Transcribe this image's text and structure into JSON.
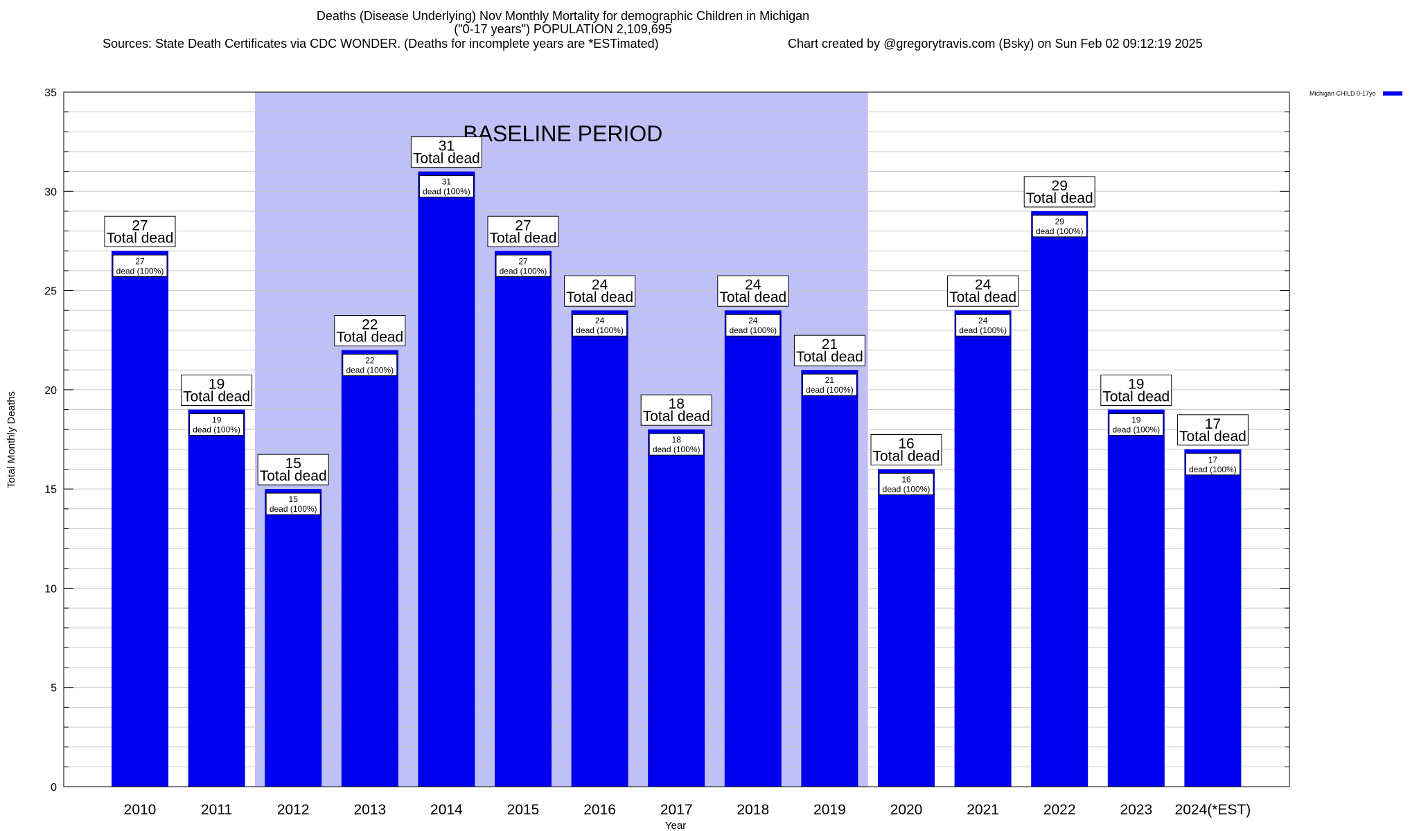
{
  "title": {
    "line1": "Deaths (Disease Underlying) Nov Monthly Mortality for demographic Children in Michigan",
    "line2": "(\"0-17 years\") POPULATION 2,109,695",
    "sources": "Sources: State Death Certificates via CDC WONDER. (Deaths for incomplete years are *ESTimated)",
    "credit": "Chart created by @gregorytravis.com (Bsky) on Sun Feb 02 09:12:19 2025"
  },
  "legend": {
    "label": "Michigan CHILD 0-17yo",
    "color": "#0000ee"
  },
  "baseline_label": "BASELINE PERIOD",
  "colors": {
    "bar": "#0000ee",
    "baseline_shade": "#c0c0f8",
    "grid": "#c8c8c8"
  },
  "chart_data": {
    "type": "bar",
    "title": "Deaths (Disease Underlying) Nov Monthly Mortality for demographic Children in Michigan",
    "xlabel": "Year",
    "ylabel": "Total Monthly Deaths",
    "ylim": [
      0,
      35
    ],
    "yticks": [
      0,
      5,
      10,
      15,
      20,
      25,
      30,
      35
    ],
    "grid": true,
    "legend_position": "top-right",
    "baseline_period": {
      "from": "2012",
      "to": "2019",
      "label": "BASELINE PERIOD"
    },
    "categories": [
      "2010",
      "2011",
      "2012",
      "2013",
      "2014",
      "2015",
      "2016",
      "2017",
      "2018",
      "2019",
      "2020",
      "2021",
      "2022",
      "2023",
      "2024(*EST)"
    ],
    "series": [
      {
        "name": "Michigan CHILD 0-17yo",
        "values": [
          27,
          19,
          15,
          22,
          31,
          27,
          24,
          18,
          24,
          21,
          16,
          24,
          29,
          19,
          17
        ]
      }
    ],
    "total_label": "Total dead",
    "inner_label": "dead (100%)"
  }
}
